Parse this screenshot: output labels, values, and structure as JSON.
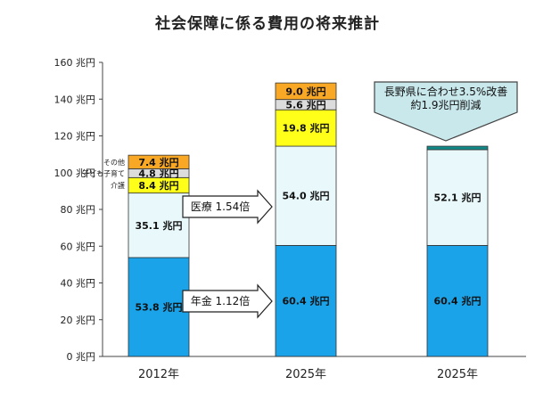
{
  "chart_data": {
    "type": "bar",
    "stacked": true,
    "title": "社会保障に係る費用の将来推計",
    "categories": [
      "2012年",
      "2025年",
      "2025年"
    ],
    "ylim": [
      0,
      160
    ],
    "yticks": [
      0,
      20,
      40,
      60,
      80,
      100,
      120,
      140,
      160
    ],
    "ytick_labels": [
      "0 兆円",
      "20 兆円",
      "40 兆円",
      "60 兆円",
      "80 兆円",
      "100 兆円",
      "120 兆円",
      "140 兆円",
      "160 兆円"
    ],
    "grid": false,
    "series": [
      {
        "values": [
          53.8,
          60.4,
          60.4
        ],
        "labels": [
          "53.8 兆円",
          "60.4 兆円",
          "60.4 兆円"
        ],
        "color": "#1aa3e8"
      },
      {
        "values": [
          35.1,
          54.0,
          52.1
        ],
        "labels": [
          "35.1 兆円",
          "54.0 兆円",
          "52.1 兆円"
        ],
        "color": "#e8f8fb"
      },
      {
        "name": "介護",
        "values": [
          8.4,
          19.8,
          0
        ],
        "labels": [
          "8.4 兆円",
          "19.8 兆円",
          ""
        ],
        "color": "#ffff1a"
      },
      {
        "name": "子ども子育て",
        "values": [
          4.8,
          5.6,
          0
        ],
        "labels": [
          "4.8 兆円",
          "5.6 兆円",
          ""
        ],
        "color": "#dcdcdc"
      },
      {
        "name": "その他",
        "values": [
          7.4,
          9.0,
          0
        ],
        "labels": [
          "7.4 兆円",
          "9.0 兆円",
          ""
        ],
        "color": "#f9a825"
      },
      {
        "values": [
          0,
          0,
          1.9
        ],
        "labels": [
          "",
          "",
          ""
        ],
        "color": "#138a8a"
      }
    ],
    "annotations": [
      {
        "text": "医療  1.54倍",
        "from": "2012年",
        "to": "2025年"
      },
      {
        "text": "年金  1.12倍",
        "from": "2012年",
        "to": "2025年"
      },
      {
        "text_lines": [
          "長野県に合わせ3.5%改善",
          "約1.9兆円削減"
        ],
        "color": "#c9e8ec"
      }
    ]
  }
}
